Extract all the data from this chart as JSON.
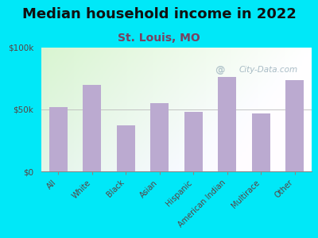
{
  "title": "Median household income in 2022",
  "subtitle": "St. Louis, MO",
  "categories": [
    "All",
    "White",
    "Black",
    "Asian",
    "Hispanic",
    "American Indian",
    "Multirace",
    "Other"
  ],
  "values": [
    52000,
    70000,
    37000,
    55000,
    48000,
    76000,
    47000,
    74000
  ],
  "bar_color": "#bbaad0",
  "background_outer": "#00e8f8",
  "ytick_labels": [
    "$0",
    "$50k",
    "$100k"
  ],
  "ytick_values": [
    0,
    50000,
    100000
  ],
  "ylim": [
    0,
    100000
  ],
  "title_fontsize": 13,
  "title_color": "#111111",
  "subtitle_fontsize": 10,
  "subtitle_color": "#7a4060",
  "tick_label_color": "#5a4040",
  "watermark": "City-Data.com",
  "watermark_color": "#9ab0bc",
  "gradient_left_color": "#d8edcc",
  "gradient_right_color": "#f8fff8"
}
